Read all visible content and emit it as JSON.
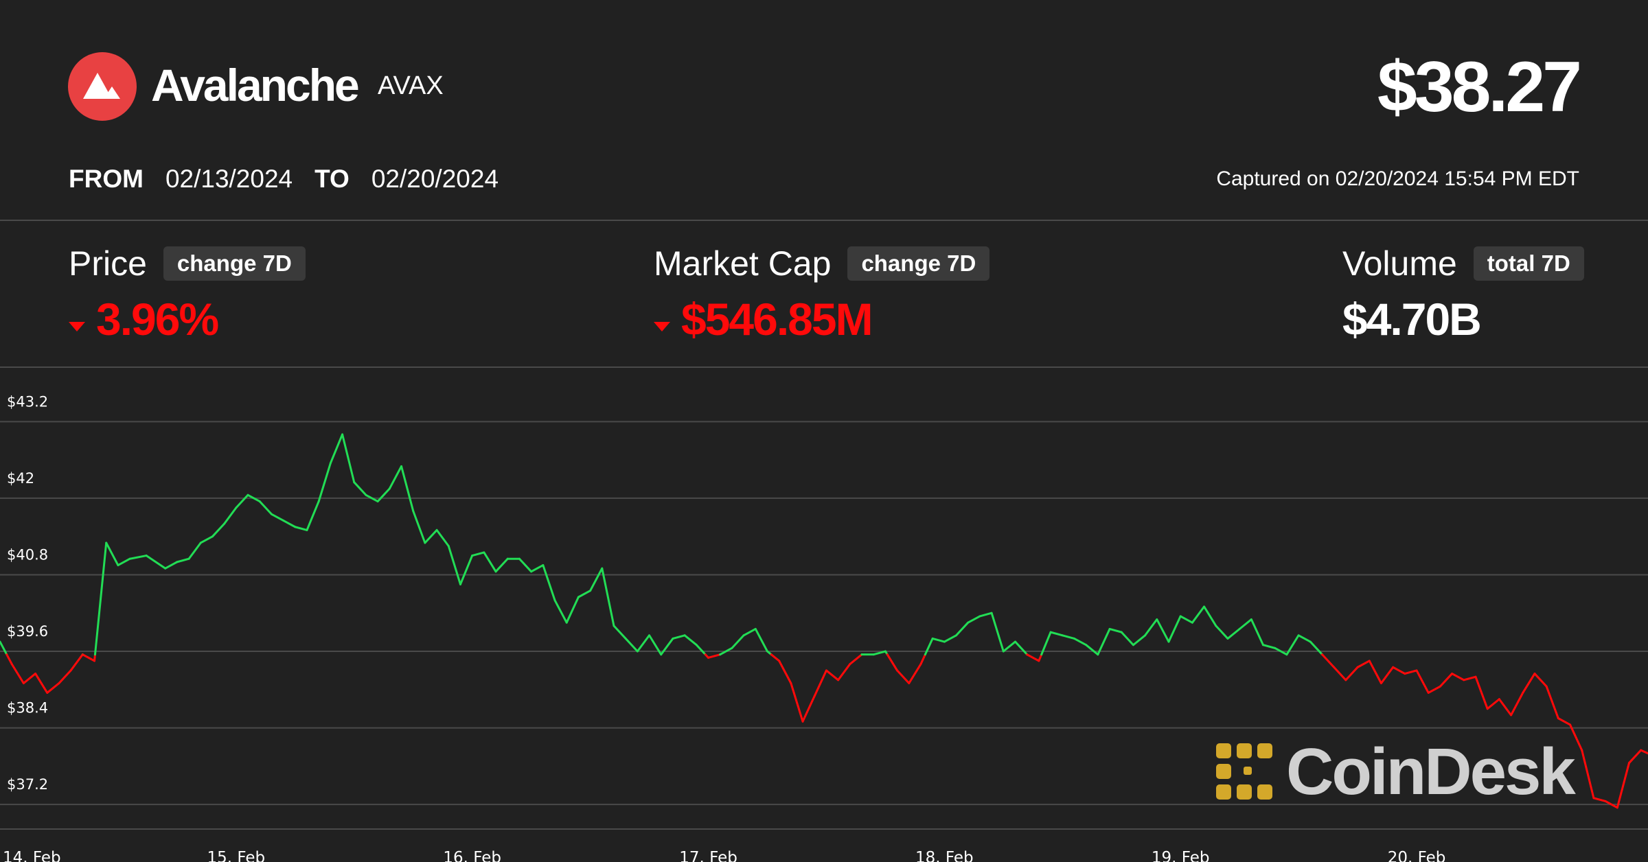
{
  "header": {
    "coin_name": "Avalanche",
    "coin_symbol": "AVAX",
    "price": "$38.27",
    "from_label": "FROM",
    "from_date": "02/13/2024",
    "to_label": "TO",
    "to_date": "02/20/2024",
    "captured": "Captured on 02/20/2024 15:54 PM EDT",
    "logo_icon": "avalanche-logo-icon",
    "logo_color": "#e84142"
  },
  "metrics": {
    "price": {
      "title": "Price",
      "chip": "change 7D",
      "value": "3.96%",
      "direction": "down"
    },
    "market_cap": {
      "title": "Market Cap",
      "chip": "change 7D",
      "value": "$546.85M",
      "direction": "down"
    },
    "volume": {
      "title": "Volume",
      "chip": "total 7D",
      "value": "$4.70B"
    }
  },
  "colors": {
    "up": "#22dd55",
    "down": "#ff0a0a",
    "background": "#212121",
    "grid": "#4a4a4a"
  },
  "watermark": {
    "text": "CoinDesk",
    "icon": "coindesk-logo-icon",
    "icon_color": "#d4a82a"
  },
  "chart_data": {
    "type": "line",
    "title": "",
    "xlabel": "",
    "ylabel": "",
    "x_ticks": [
      "14. Feb",
      "15. Feb",
      "16. Feb",
      "17. Feb",
      "18. Feb",
      "19. Feb",
      "20. Feb"
    ],
    "y_ticks": [
      "$37.2",
      "$38.4",
      "$39.6",
      "$40.8",
      "$42",
      "$43.2"
    ],
    "ylim": [
      36.9,
      44.0
    ],
    "xlim": [
      0,
      6.98
    ],
    "baseline": 39.55,
    "grid": true,
    "series": [
      {
        "x": [
          0.0,
          0.05,
          0.1,
          0.15,
          0.2,
          0.25,
          0.3,
          0.35,
          0.4,
          0.45,
          0.5,
          0.55,
          0.62,
          0.7,
          0.75,
          0.8,
          0.85,
          0.9,
          0.95,
          1.0,
          1.05,
          1.1,
          1.15,
          1.2,
          1.25,
          1.3,
          1.35,
          1.4,
          1.45,
          1.5,
          1.55,
          1.6,
          1.65,
          1.7,
          1.75,
          1.8,
          1.85,
          1.9,
          1.95,
          2.0,
          2.05,
          2.1,
          2.15,
          2.2,
          2.25,
          2.3,
          2.35,
          2.4,
          2.45,
          2.5,
          2.55,
          2.6,
          2.65,
          2.7,
          2.75,
          2.8,
          2.85,
          2.9,
          2.95,
          3.0,
          3.05,
          3.1,
          3.15,
          3.2,
          3.25,
          3.3,
          3.35,
          3.4,
          3.45,
          3.5,
          3.55,
          3.6,
          3.65,
          3.7,
          3.75,
          3.8,
          3.85,
          3.9,
          3.95,
          4.0,
          4.05,
          4.1,
          4.15,
          4.2,
          4.25,
          4.3,
          4.35,
          4.4,
          4.45,
          4.5,
          4.55,
          4.6,
          4.65,
          4.7,
          4.75,
          4.8,
          4.85,
          4.9,
          4.95,
          5.0,
          5.05,
          5.1,
          5.15,
          5.2,
          5.25,
          5.3,
          5.35,
          5.4,
          5.45,
          5.5,
          5.55,
          5.6,
          5.65,
          5.7,
          5.75,
          5.8,
          5.85,
          5.9,
          5.95,
          6.0,
          6.05,
          6.1,
          6.15,
          6.2,
          6.25,
          6.3,
          6.35,
          6.4,
          6.45,
          6.5,
          6.55,
          6.6,
          6.65,
          6.7,
          6.75,
          6.8,
          6.85,
          6.9,
          6.95,
          6.98
        ],
        "y": [
          39.75,
          39.4,
          39.1,
          39.25,
          38.95,
          39.1,
          39.3,
          39.55,
          39.45,
          41.3,
          40.95,
          41.05,
          41.1,
          40.9,
          41.0,
          41.05,
          41.3,
          41.4,
          41.6,
          41.85,
          42.05,
          41.95,
          41.75,
          41.65,
          41.55,
          41.5,
          41.95,
          42.55,
          43.0,
          42.25,
          42.05,
          41.95,
          42.15,
          42.5,
          41.8,
          41.3,
          41.5,
          41.25,
          40.65,
          41.1,
          41.15,
          40.85,
          41.05,
          41.05,
          40.85,
          40.95,
          40.4,
          40.05,
          40.45,
          40.55,
          40.9,
          40.0,
          39.8,
          39.6,
          39.85,
          39.55,
          39.8,
          39.85,
          39.7,
          39.5,
          39.55,
          39.65,
          39.85,
          39.95,
          39.6,
          39.45,
          39.1,
          38.5,
          38.9,
          39.3,
          39.15,
          39.4,
          39.55,
          39.55,
          39.6,
          39.3,
          39.1,
          39.4,
          39.8,
          39.75,
          39.85,
          40.05,
          40.15,
          40.2,
          39.6,
          39.75,
          39.55,
          39.45,
          39.9,
          39.85,
          39.8,
          39.7,
          39.55,
          39.95,
          39.9,
          39.7,
          39.85,
          40.1,
          39.75,
          40.15,
          40.05,
          40.3,
          40.0,
          39.8,
          39.95,
          40.1,
          39.7,
          39.65,
          39.55,
          39.85,
          39.75,
          39.55,
          39.35,
          39.15,
          39.35,
          39.45,
          39.1,
          39.35,
          39.25,
          39.3,
          38.95,
          39.05,
          39.25,
          39.15,
          39.2,
          38.7,
          38.85,
          38.6,
          38.95,
          39.25,
          39.05,
          38.55,
          38.45,
          38.05,
          37.3,
          37.25,
          37.15,
          37.85,
          38.05,
          38.0
        ]
      }
    ]
  }
}
